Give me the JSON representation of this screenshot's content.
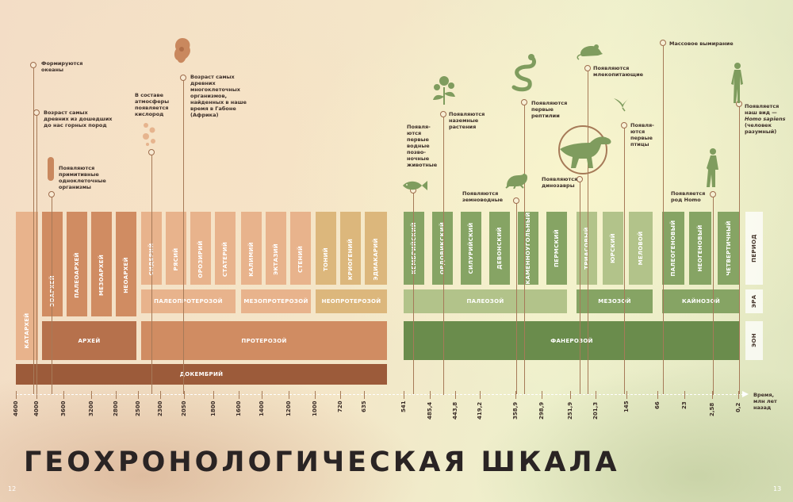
{
  "title": "ГЕОХРОНОЛОГИЧЕСКАЯ ШКАЛА",
  "page_left": "12",
  "page_right": "13",
  "colors": {
    "precambrian_light": "#e8b38c",
    "precambrian_mid": "#d08c62",
    "precambrian_dark": "#b6714c",
    "precambrian_darkest": "#9c5b3a",
    "proterozoic_late": "#dcb77c",
    "phanerozoic_light": "#b2c38a",
    "phanerozoic_mid": "#86a464",
    "phanerozoic_dark": "#6a8c4c"
  },
  "row_labels": {
    "period": "ПЕРИОД",
    "era": "ЭРА",
    "eon": "ЭОН"
  },
  "axis": {
    "label": "Время,",
    "label2": "млн лет",
    "label3": "назад",
    "ticks": [
      "4600",
      "4000",
      "3600",
      "3200",
      "2800",
      "2500",
      "2300",
      "2050",
      "1800",
      "1600",
      "1400",
      "1200",
      "1000",
      "720",
      "635",
      "541",
      "485,4",
      "443,8",
      "419,2",
      "358,9",
      "298,9",
      "251,9",
      "201,3",
      "145",
      "66",
      "23",
      "2,58",
      "0,2"
    ]
  },
  "precambrian": {
    "supereon": "ДОКЕМБРИЙ",
    "katarchean": "КАТАРХЕЙ",
    "archean": "АРХЕЙ",
    "proterozoic": "ПРОТЕРОЗОЙ",
    "archean_periods": [
      "ЭОАРХЕЙ",
      "ПАЛЕОАРХЕЙ",
      "МЕЗОАРХЕЙ",
      "НЕОАРХЕЙ"
    ],
    "proterozoic_periods": [
      "СИДЕРИЙ",
      "РЯСИЙ",
      "ОРОЗИРИЙ",
      "СТАТЕРИЙ",
      "КАЛИМИЙ",
      "ЭКТАЗИЙ",
      "СТЕНИЙ",
      "ТОНИЙ",
      "КРИОГЕНИЙ",
      "ЭДИАКАРИЙ"
    ],
    "proterozoic_eras": [
      "ПАЛЕОПРОТЕРОЗОЙ",
      "МЕЗОПРОТЕРОЗОЙ",
      "НЕОПРОТЕРОЗОЙ"
    ]
  },
  "phanerozoic": {
    "eon": "ФАНЕРОЗОЙ",
    "eras": [
      "ПАЛЕОЗОЙ",
      "МЕЗОЗОЙ",
      "КАЙНОЗОЙ"
    ],
    "periods": [
      "КЕМБРИЙСКИЙ",
      "ОРДОВИКСКИЙ",
      "СИЛУРИЙСКИЙ",
      "ДЕВОНСКИЙ",
      "КАМЕННОУГОЛЬНЫЙ",
      "ПЕРМСКИЙ",
      "ТРИАСОВЫЙ",
      "ЮРСКИЙ",
      "МЕЛОВОЙ",
      "ПАЛЕОГЕНОВЫЙ",
      "НЕОГЕНОВЫЙ",
      "ЧЕТВЕРТИЧНЫЙ"
    ]
  },
  "annotations": [
    {
      "id": "oceans",
      "lines": [
        "Формируются",
        "океаны"
      ]
    },
    {
      "id": "rocks",
      "lines": [
        "Возраст самых",
        "древних из дошедших",
        "до нас горных пород"
      ]
    },
    {
      "id": "unicellular",
      "lines": [
        "Появляются",
        "примитивные",
        "одноклеточные",
        "организмы"
      ]
    },
    {
      "id": "oxygen",
      "lines": [
        "В составе",
        "атмосферы",
        "появляется",
        "кислород"
      ]
    },
    {
      "id": "multicellular",
      "lines": [
        "Возраст самых",
        "древних",
        "многоклеточных",
        "организмов,",
        "найденных в наше",
        "время в Габоне",
        "(Африка)"
      ]
    },
    {
      "id": "vertebrates",
      "lines": [
        "Появля-",
        "ются",
        "первые",
        "водные",
        "позво-",
        "ночные",
        "животные"
      ]
    },
    {
      "id": "land_plants",
      "lines": [
        "Появляются",
        "наземные",
        "растения"
      ]
    },
    {
      "id": "amphibians",
      "lines": [
        "Появляются",
        "земноводные"
      ]
    },
    {
      "id": "reptiles",
      "lines": [
        "Появляются",
        "первые",
        "рептилии"
      ]
    },
    {
      "id": "dinosaurs",
      "lines": [
        "Появляются",
        "динозавры"
      ]
    },
    {
      "id": "mammals",
      "lines": [
        "Появляются",
        "млекопитающие"
      ]
    },
    {
      "id": "birds",
      "lines": [
        "Появля-",
        "ются",
        "первые",
        "птицы"
      ]
    },
    {
      "id": "extinction",
      "lines": [
        "Массовое вымирание"
      ]
    },
    {
      "id": "homo",
      "lines": [
        "Появляется",
        "род Homo"
      ]
    },
    {
      "id": "sapiens",
      "lines": [
        "Появляется",
        "наш вид —",
        "Homo sapiens",
        "(человек",
        "разумный)"
      ]
    }
  ],
  "icons": [
    "amoeba-icon",
    "bubbles-icon",
    "bacteria-icon",
    "fish-icon",
    "flower-plant-icon",
    "frog-icon",
    "snake-icon",
    "dinosaur-icon",
    "mouse-icon",
    "bird-icon",
    "early-human-icon",
    "modern-human-icon"
  ]
}
